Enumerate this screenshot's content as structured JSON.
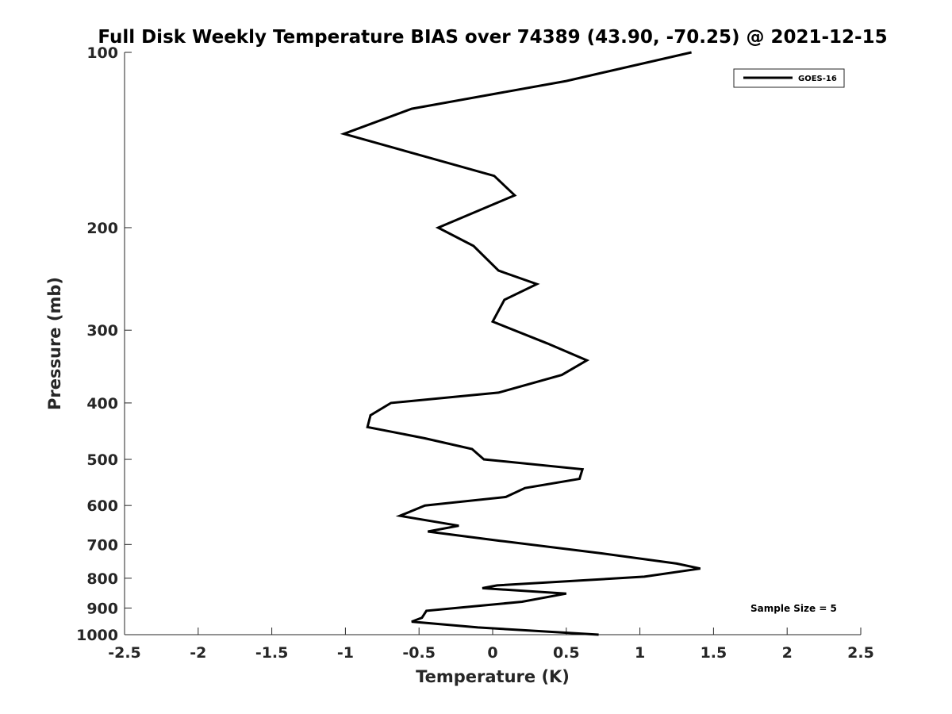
{
  "chart_data": {
    "type": "line",
    "title": "Full Disk Weekly Temperature BIAS over 74389 (43.90, -70.25) @ 2021-12-15",
    "xlabel": "Temperature (K)",
    "ylabel": "Pressure (mb)",
    "xlim": [
      -2.5,
      2.5
    ],
    "ylim": [
      1000,
      100
    ],
    "yscale": "log",
    "y_reversed": true,
    "grid": false,
    "legend_position": "top-right",
    "x_ticks": [
      -2.5,
      -2,
      -1.5,
      -1,
      -0.5,
      0,
      0.5,
      1,
      1.5,
      2,
      2.5
    ],
    "x_tick_labels": [
      "-2.5",
      "-2",
      "-1.5",
      "-1",
      "-0.5",
      "0",
      "0.5",
      "1",
      "1.5",
      "2",
      "2.5"
    ],
    "y_ticks": [
      100,
      200,
      300,
      400,
      500,
      600,
      700,
      800,
      900,
      1000
    ],
    "y_tick_labels": [
      "100",
      "200",
      "300",
      "400",
      "500",
      "600",
      "700",
      "800",
      "900",
      "1000"
    ],
    "series": [
      {
        "name": "GOES-16",
        "color": "#000000",
        "points": [
          {
            "x": 1.35,
            "y": 100
          },
          {
            "x": 0.5,
            "y": 112
          },
          {
            "x": -0.55,
            "y": 125
          },
          {
            "x": -1.01,
            "y": 138
          },
          {
            "x": 0.01,
            "y": 163
          },
          {
            "x": 0.15,
            "y": 176
          },
          {
            "x": -0.37,
            "y": 200
          },
          {
            "x": -0.13,
            "y": 215
          },
          {
            "x": 0.04,
            "y": 237
          },
          {
            "x": 0.3,
            "y": 250
          },
          {
            "x": 0.08,
            "y": 266
          },
          {
            "x": 0.0,
            "y": 290
          },
          {
            "x": 0.37,
            "y": 316
          },
          {
            "x": 0.64,
            "y": 338
          },
          {
            "x": 0.47,
            "y": 358
          },
          {
            "x": 0.04,
            "y": 384
          },
          {
            "x": -0.69,
            "y": 400
          },
          {
            "x": -0.83,
            "y": 420
          },
          {
            "x": -0.85,
            "y": 440
          },
          {
            "x": -0.46,
            "y": 460
          },
          {
            "x": -0.14,
            "y": 480
          },
          {
            "x": -0.06,
            "y": 500
          },
          {
            "x": 0.61,
            "y": 520
          },
          {
            "x": 0.59,
            "y": 540
          },
          {
            "x": 0.22,
            "y": 560
          },
          {
            "x": 0.09,
            "y": 580
          },
          {
            "x": -0.46,
            "y": 600
          },
          {
            "x": -0.63,
            "y": 625
          },
          {
            "x": -0.23,
            "y": 650
          },
          {
            "x": -0.44,
            "y": 665
          },
          {
            "x": 0.05,
            "y": 690
          },
          {
            "x": 0.74,
            "y": 725
          },
          {
            "x": 1.25,
            "y": 755
          },
          {
            "x": 1.41,
            "y": 770
          },
          {
            "x": 1.03,
            "y": 795
          },
          {
            "x": 0.03,
            "y": 823
          },
          {
            "x": -0.07,
            "y": 832
          },
          {
            "x": 0.5,
            "y": 850
          },
          {
            "x": 0.2,
            "y": 878
          },
          {
            "x": -0.45,
            "y": 910
          },
          {
            "x": -0.48,
            "y": 935
          },
          {
            "x": -0.55,
            "y": 950
          },
          {
            "x": -0.1,
            "y": 972
          },
          {
            "x": 0.72,
            "y": 1000
          }
        ]
      }
    ],
    "legend": [
      {
        "label": "GOES-16",
        "color": "#000000"
      }
    ],
    "annotations": [
      {
        "text": "Sample Size = 5"
      }
    ]
  }
}
